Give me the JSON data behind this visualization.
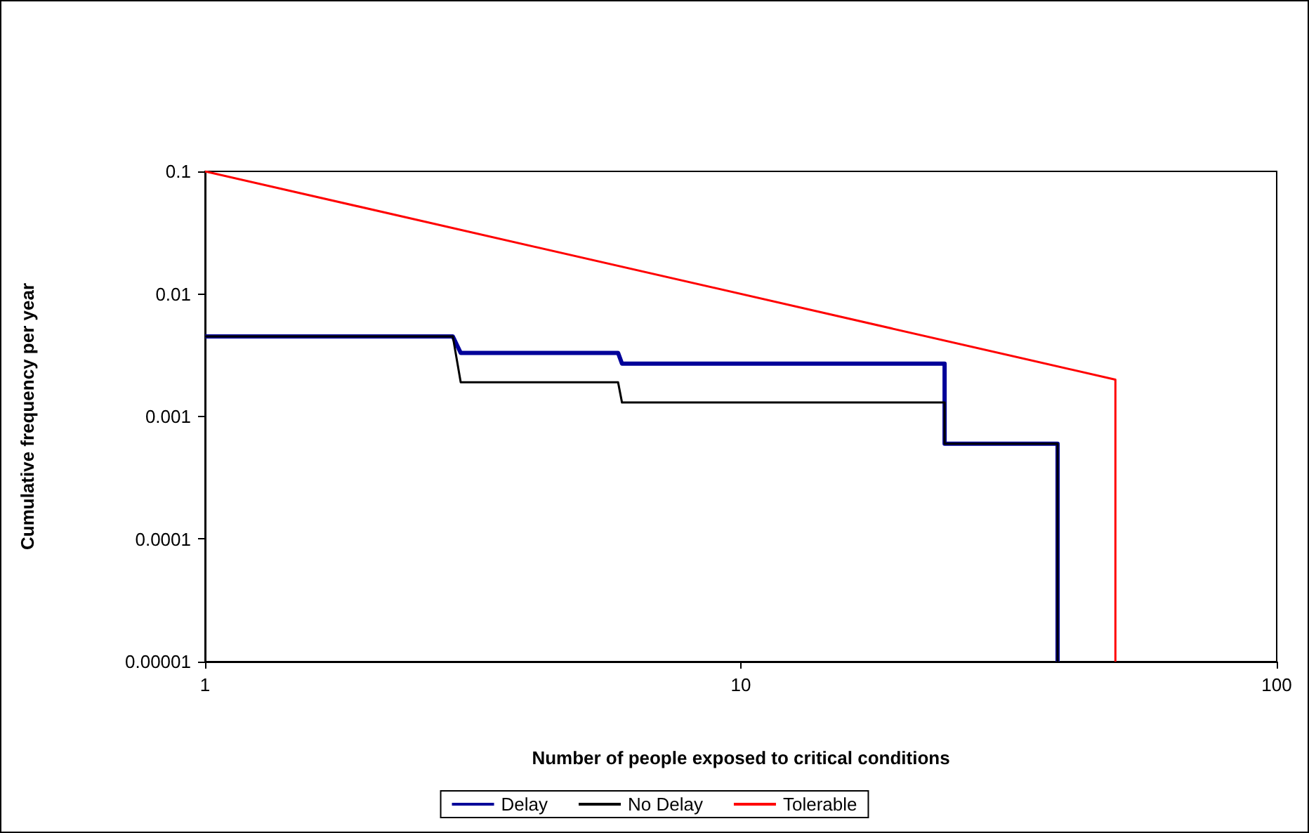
{
  "chart_data": {
    "type": "line",
    "xlabel": "Number of people exposed to critical conditions",
    "ylabel": "Cumulative frequency per year",
    "log": "xy",
    "xlim": [
      1,
      100
    ],
    "xticks": [
      1,
      10,
      100
    ],
    "ylim": [
      1e-05,
      0.1
    ],
    "yticks": [
      {
        "value": 1e-05,
        "label": "0.00001"
      },
      0.0001,
      0.001,
      0.01,
      0.1
    ],
    "grid": false,
    "legend": "bottom",
    "marker": "none",
    "line_style": "solid",
    "series": [
      {
        "name": "Delay",
        "color": "#000099",
        "x": [
          1,
          2.9,
          3,
          5.9,
          6,
          24,
          24,
          39,
          39
        ],
        "values": [
          0.0045,
          0.0045,
          0.0033,
          0.0033,
          0.0027,
          0.0027,
          0.0006,
          0.0006,
          1e-05
        ]
      },
      {
        "name": "No Delay",
        "color": "#000000",
        "x": [
          1,
          2.9,
          3,
          5.9,
          6,
          24,
          24,
          39,
          39
        ],
        "values": [
          0.0045,
          0.0045,
          0.0019,
          0.0019,
          0.0013,
          0.0013,
          0.0006,
          0.0006,
          1e-05
        ]
      },
      {
        "name": "Tolerable",
        "color": "#ff0000",
        "x": [
          1,
          50,
          50
        ],
        "values": [
          0.1,
          0.002,
          1e-05
        ]
      }
    ]
  }
}
